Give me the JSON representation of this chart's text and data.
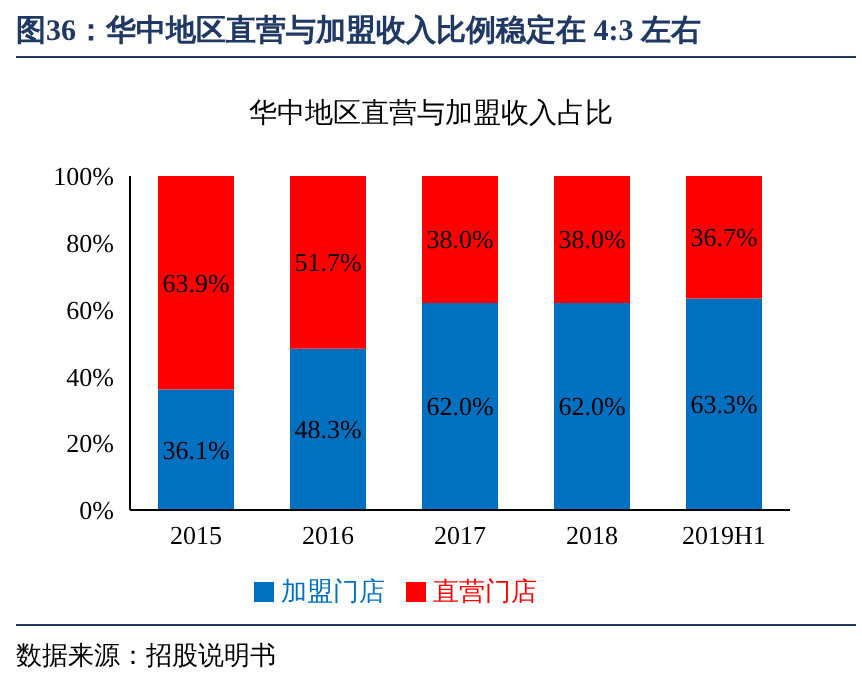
{
  "chart_data": {
    "type": "bar",
    "title": "图36：华中地区直营与加盟收入比例稳定在 4:3 左右",
    "subtitle": "华中地区直营与加盟收入占比",
    "categories": [
      "2015",
      "2016",
      "2017",
      "2018",
      "2019H1"
    ],
    "stacked": true,
    "series": [
      {
        "name": "加盟门店",
        "color": "#0070c0",
        "values": [
          36.1,
          48.3,
          62.0,
          62.0,
          63.3
        ],
        "value_labels": [
          "36.1%",
          "48.3%",
          "62.0%",
          "62.0%",
          "63.3%"
        ]
      },
      {
        "name": "直营门店",
        "color": "#ff0000",
        "values": [
          63.9,
          51.7,
          38.0,
          38.0,
          36.7
        ],
        "value_labels": [
          "63.9%",
          "51.7%",
          "38.0%",
          "38.0%",
          "36.7%"
        ]
      }
    ],
    "ylim": [
      0,
      100
    ],
    "yticks": [
      {
        "value": 0,
        "label": "0%"
      },
      {
        "value": 20,
        "label": "20%"
      },
      {
        "value": 40,
        "label": "40%"
      },
      {
        "value": 60,
        "label": "60%"
      },
      {
        "value": 80,
        "label": "80%"
      },
      {
        "value": 100,
        "label": "100%"
      }
    ],
    "grid": false,
    "legend": "bottom",
    "annotations": [
      "数据来源：招股说明书"
    ]
  }
}
